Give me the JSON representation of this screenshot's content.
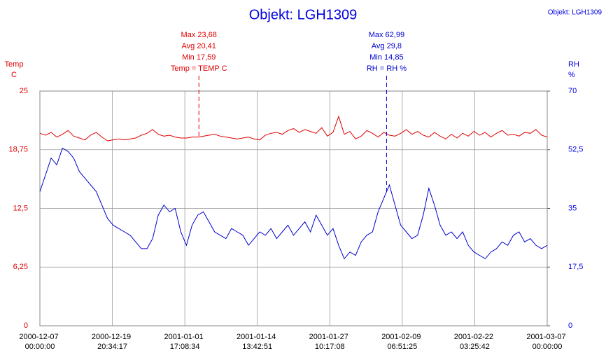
{
  "chart_data": {
    "type": "line",
    "title": "Objekt: LGH1309",
    "corner_label": "Objekt: LGH1309",
    "y_label": [
      "Temp",
      "C"
    ],
    "y2_label": [
      "RH",
      "%"
    ],
    "grid": true,
    "xlim": [
      "2000-12-07 00:00:00",
      "2001-03-07 00:00:00"
    ],
    "xticks": [
      "2000-12-07 00:00:00",
      "2000-12-19 20:34:17",
      "2001-01-01 17:08:34",
      "2001-01-14 13:42:51",
      "2001-01-27 10:17:08",
      "2001-02-09 06:51:25",
      "2001-02-22 03:25:42",
      "2001-03-07 00:00:00"
    ],
    "ylim": [
      0,
      25
    ],
    "yticks": [
      0,
      {
        "value": 6.25,
        "label": "6,25"
      },
      {
        "value": 12.5,
        "label": "12,5"
      },
      {
        "value": 18.75,
        "label": "18,75"
      },
      25
    ],
    "y2lim": [
      0,
      70
    ],
    "y2ticks": [
      0,
      {
        "value": 17.5,
        "label": "17,5"
      },
      35,
      {
        "value": 52.5,
        "label": "52,5"
      },
      70
    ],
    "x": [
      "2000-12-07 00:00:00",
      "2000-12-08 00:00:00",
      "2000-12-09 00:00:00",
      "2000-12-10 00:00:00",
      "2000-12-11 00:00:00",
      "2000-12-12 00:00:00",
      "2000-12-13 00:00:00",
      "2000-12-14 00:00:00",
      "2000-12-15 00:00:00",
      "2000-12-16 00:00:00",
      "2000-12-17 00:00:00",
      "2000-12-18 00:00:00",
      "2000-12-19 00:00:00",
      "2000-12-20 00:00:00",
      "2000-12-21 00:00:00",
      "2000-12-22 00:00:00",
      "2000-12-23 00:00:00",
      "2000-12-24 00:00:00",
      "2000-12-25 00:00:00",
      "2000-12-26 00:00:00",
      "2000-12-27 00:00:00",
      "2000-12-28 00:00:00",
      "2000-12-29 00:00:00",
      "2000-12-30 00:00:00",
      "2000-12-31 00:00:00",
      "2001-01-01 00:00:00",
      "2001-01-02 00:00:00",
      "2001-01-03 00:00:00",
      "2001-01-04 00:00:00",
      "2001-01-05 00:00:00",
      "2001-01-06 00:00:00",
      "2001-01-07 00:00:00",
      "2001-01-08 00:00:00",
      "2001-01-09 00:00:00",
      "2001-01-10 00:00:00",
      "2001-01-11 00:00:00",
      "2001-01-12 00:00:00",
      "2001-01-13 00:00:00",
      "2001-01-14 00:00:00",
      "2001-01-15 00:00:00",
      "2001-01-16 00:00:00",
      "2001-01-17 00:00:00",
      "2001-01-18 00:00:00",
      "2001-01-19 00:00:00",
      "2001-01-20 00:00:00",
      "2001-01-21 00:00:00",
      "2001-01-22 00:00:00",
      "2001-01-23 00:00:00",
      "2001-01-24 00:00:00",
      "2001-01-25 00:00:00",
      "2001-01-26 00:00:00",
      "2001-01-27 00:00:00",
      "2001-01-28 00:00:00",
      "2001-01-29 00:00:00",
      "2001-01-30 00:00:00",
      "2001-01-31 00:00:00",
      "2001-02-01 00:00:00",
      "2001-02-02 00:00:00",
      "2001-02-03 00:00:00",
      "2001-02-04 00:00:00",
      "2001-02-05 00:00:00",
      "2001-02-06 00:00:00",
      "2001-02-07 00:00:00",
      "2001-02-08 00:00:00",
      "2001-02-09 00:00:00",
      "2001-02-10 00:00:00",
      "2001-02-11 00:00:00",
      "2001-02-12 00:00:00",
      "2001-02-13 00:00:00",
      "2001-02-14 00:00:00",
      "2001-02-15 00:00:00",
      "2001-02-16 00:00:00",
      "2001-02-17 00:00:00",
      "2001-02-18 00:00:00",
      "2001-02-19 00:00:00",
      "2001-02-20 00:00:00",
      "2001-02-21 00:00:00",
      "2001-02-22 00:00:00",
      "2001-02-23 00:00:00",
      "2001-02-24 00:00:00",
      "2001-02-25 00:00:00",
      "2001-02-26 00:00:00",
      "2001-02-27 00:00:00",
      "2001-02-28 00:00:00",
      "2001-03-01 00:00:00",
      "2001-03-02 00:00:00",
      "2001-03-03 00:00:00",
      "2001-03-04 00:00:00",
      "2001-03-05 00:00:00",
      "2001-03-06 00:00:00",
      "2001-03-07 00:00:00"
    ],
    "series": [
      {
        "name": "Temp = TEMP C",
        "color": "#e00000",
        "axis": "y",
        "values": [
          20.5,
          20.3,
          20.6,
          20.1,
          20.4,
          20.8,
          20.2,
          20.0,
          19.8,
          20.3,
          20.6,
          20.1,
          19.7,
          19.8,
          19.9,
          19.8,
          19.9,
          20.0,
          20.3,
          20.5,
          20.9,
          20.4,
          20.2,
          20.3,
          20.1,
          20.0,
          20.0,
          20.1,
          20.1,
          20.2,
          20.3,
          20.4,
          20.2,
          20.1,
          20.0,
          19.9,
          20.0,
          20.1,
          19.9,
          19.8,
          20.3,
          20.5,
          20.6,
          20.4,
          20.8,
          21.0,
          20.6,
          20.9,
          20.7,
          20.5,
          21.1,
          20.2,
          20.6,
          22.3,
          20.4,
          20.7,
          19.9,
          20.2,
          20.8,
          20.5,
          20.1,
          20.6,
          20.3,
          20.2,
          20.5,
          20.9,
          20.4,
          20.7,
          20.3,
          20.1,
          20.6,
          20.2,
          19.9,
          20.4,
          20.0,
          20.5,
          20.2,
          20.7,
          20.3,
          20.6,
          20.1,
          20.5,
          20.8,
          20.3,
          20.4,
          20.2,
          20.6,
          20.5,
          20.9,
          20.3,
          20.1
        ]
      },
      {
        "name": "RH = RH %",
        "color": "#0000d0",
        "axis": "y2",
        "values": [
          40,
          45,
          50,
          48,
          53,
          52,
          50,
          46,
          44,
          42,
          40,
          36,
          32,
          30,
          29,
          28,
          27,
          25,
          23,
          23,
          26,
          33,
          36,
          34,
          35,
          28,
          24,
          30,
          33,
          34,
          31,
          28,
          27,
          26,
          29,
          28,
          27,
          24,
          26,
          28,
          27,
          29,
          26,
          28,
          30,
          27,
          29,
          31,
          28,
          33,
          30,
          27,
          29,
          24,
          20,
          22,
          21,
          25,
          27,
          28,
          34,
          38,
          42,
          36,
          30,
          28,
          26,
          27,
          33,
          41,
          36,
          30,
          27,
          28,
          26,
          28,
          24,
          22,
          21,
          20,
          22,
          23,
          25,
          24,
          27,
          28,
          25,
          26,
          24,
          23,
          24
        ]
      }
    ],
    "annotations": [
      {
        "x": "2001-01-04 05:00:00",
        "series": 0,
        "lines": [
          "Max 23,68",
          "Avg 20,41",
          "Min 17,59",
          "Temp = TEMP C"
        ]
      },
      {
        "x": "2001-02-06 12:00:00",
        "series": 1,
        "lines": [
          "Max 62,99",
          "Avg 29,8",
          "Min 14,85",
          "RH = RH %"
        ]
      }
    ]
  }
}
